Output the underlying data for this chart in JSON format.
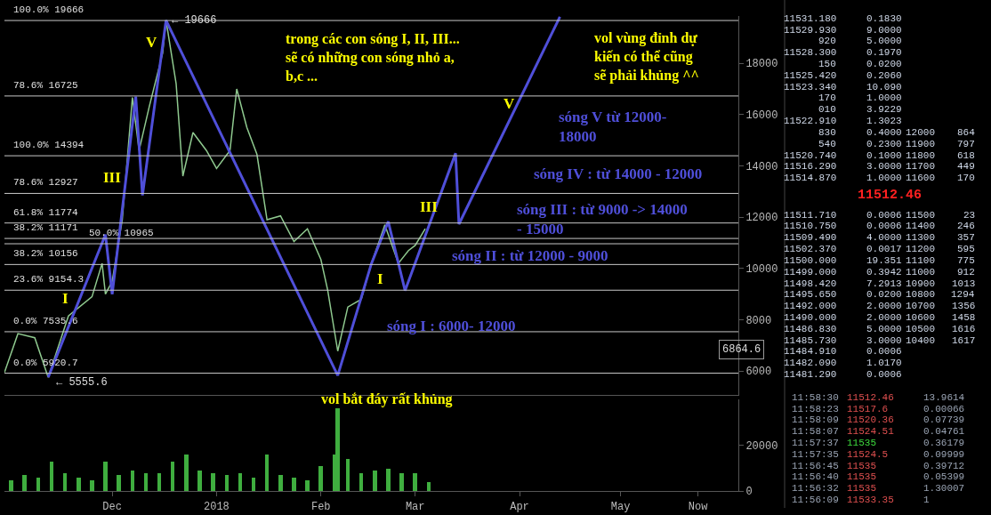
{
  "chart_data": [
    {
      "type": "line",
      "xlim": [
        "2017-10-30",
        "2018-06-05"
      ],
      "ylim": [
        5080,
        19850
      ],
      "yticks": [
        6000,
        8000,
        10000,
        12000,
        14000,
        16000,
        18000
      ],
      "tick_labels": "y",
      "series": [
        {
          "color": "#8fc98f",
          "x": [
            "2017-10-30",
            "2017-11-03",
            "2017-11-08",
            "2017-11-12",
            "2017-11-18",
            "2017-11-25",
            "2017-11-28",
            "2017-11-29",
            "2017-12-01",
            "2017-12-04",
            "2017-12-07",
            "2017-12-09",
            "2017-12-12",
            "2017-12-16",
            "2017-12-17",
            "2017-12-20",
            "2017-12-22",
            "2017-12-25",
            "2017-12-29",
            "2018-01-01",
            "2018-01-05",
            "2018-01-07",
            "2018-01-10",
            "2018-01-13",
            "2018-01-16",
            "2018-01-20",
            "2018-01-24",
            "2018-01-28",
            "2018-02-01",
            "2018-02-03",
            "2018-02-06",
            "2018-02-09",
            "2018-02-13",
            "2018-02-16",
            "2018-02-20",
            "2018-02-24",
            "2018-02-27",
            "2018-03-01",
            "2018-03-04"
          ],
          "values": [
            5950,
            7460,
            7300,
            5760,
            8150,
            8900,
            10200,
            9000,
            9500,
            11900,
            16670,
            14600,
            16300,
            18400,
            19670,
            17200,
            13600,
            15300,
            14600,
            13900,
            14600,
            17000,
            15500,
            14450,
            11900,
            12050,
            11050,
            11550,
            10350,
            9170,
            6780,
            8500,
            8800,
            10200,
            11700,
            10200,
            10700,
            10900,
            11550
          ]
        },
        {
          "color": "#4f4fd9",
          "x": [
            "2017-11-12",
            "2017-11-29",
            "2017-12-01",
            "2017-12-08",
            "2017-12-10",
            "2017-12-17",
            "2018-02-06",
            "2018-02-16",
            "2018-02-21",
            "2018-02-26",
            "2018-03-13",
            "2018-03-14",
            "2018-04-13"
          ],
          "values": [
            5760,
            11320,
            9000,
            16700,
            12850,
            19670,
            5830,
            10190,
            11830,
            9140,
            14490,
            11730,
            19810
          ]
        }
      ],
      "ref_lines": [
        {
          "axis": "y",
          "value": 19666,
          "label": "100.0% 19666",
          "color": "#c8c8c8"
        },
        {
          "axis": "y",
          "value": 16725,
          "label": "78.6% 16725",
          "color": "#c8c8c8"
        },
        {
          "axis": "y",
          "value": 14394,
          "label": "100.0% 14394",
          "color": "#c8c8c8"
        },
        {
          "axis": "y",
          "value": 12927,
          "label": "78.6% 12927",
          "color": "#c8c8c8"
        },
        {
          "axis": "y",
          "value": 11774,
          "label": "61.8% 11774",
          "color": "#c8c8c8"
        },
        {
          "axis": "y",
          "value": 11171,
          "label": "38.2% 11171",
          "color": "#c8c8c8"
        },
        {
          "axis": "y",
          "value": 10965,
          "label": "50.0% 10965",
          "color": "#c8c8c8"
        },
        {
          "axis": "y",
          "value": 10156,
          "label": "38.2% 10156",
          "color": "#c8c8c8"
        },
        {
          "axis": "y",
          "value": 9154.3,
          "label": "23.6% 9154.3",
          "color": "#c8c8c8"
        },
        {
          "axis": "y",
          "value": 7535.6,
          "label": "0.0% 7535.6",
          "color": "#c8c8c8"
        },
        {
          "axis": "y",
          "value": 5920.7,
          "label": "0.0% 5920.7",
          "color": "#c8c8c8"
        }
      ],
      "annotations": [
        "V",
        "III",
        "I",
        "I",
        "III",
        "V",
        "trong các con sóng I, II, III...\nsẽ có những con sóng nhỏ a,\nb,c ...",
        "vol vùng đỉnh dự\nkiến có thể cũng\nsẽ phải khủng ^^",
        "sóng V từ 12000-\n18000",
        "sóng IV : từ 14000 - 12000",
        "sóng III : từ 9000 -> 14000\n- 15000",
        "sóng II : từ 12000 - 9000",
        "sóng I : 6000- 12000",
        {
          "text": "← 19666",
          "x": "2017-12-18",
          "y": 19666
        },
        "← 5555.6",
        "6864.6",
        "vol bắt đáy rất khủng"
      ]
    },
    {
      "type": "bar",
      "xlim": [
        "2017-10-30",
        "2018-06-05"
      ],
      "ylim": [
        0,
        40000
      ],
      "yticks": [
        0,
        20000
      ],
      "xticks": [
        {
          "value": "2017-12-01",
          "label": "Dec"
        },
        {
          "value": "2018-01-01",
          "label": "2018"
        },
        {
          "value": "2018-02-01",
          "label": "Feb"
        },
        {
          "value": "2018-03-01",
          "label": "Mar"
        },
        {
          "value": "2018-04-01",
          "label": "Apr"
        },
        {
          "value": "2018-05-01",
          "label": "May"
        },
        {
          "value": "2018-05-24",
          "label": "Now"
        }
      ],
      "x": [
        "2017-11-01",
        "2017-11-05",
        "2017-11-09",
        "2017-11-13",
        "2017-11-17",
        "2017-11-21",
        "2017-11-25",
        "2017-11-29",
        "2017-12-03",
        "2017-12-07",
        "2017-12-11",
        "2017-12-15",
        "2017-12-19",
        "2017-12-23",
        "2017-12-27",
        "2017-12-31",
        "2018-01-04",
        "2018-01-08",
        "2018-01-12",
        "2018-01-16",
        "2018-01-20",
        "2018-01-24",
        "2018-01-28",
        "2018-02-01",
        "2018-02-05",
        "2018-02-06",
        "2018-02-09",
        "2018-02-13",
        "2018-02-17",
        "2018-02-21",
        "2018-02-25",
        "2018-03-01",
        "2018-03-05"
      ],
      "series": [
        {
          "color": "#3fae3f",
          "values": [
            5000,
            7000,
            6000,
            13000,
            8000,
            6000,
            5000,
            13000,
            7000,
            9000,
            8000,
            8000,
            13000,
            16000,
            9000,
            8000,
            7000,
            8000,
            6000,
            16000,
            7000,
            6000,
            5000,
            11000,
            16000,
            36000,
            14000,
            8000,
            9000,
            10000,
            8000,
            8000,
            4000
          ]
        }
      ]
    },
    {
      "type": "other",
      "annotations": [
        "11531.180 0.1830",
        "11529.930 9.0000",
        "920 5.0000",
        "11528.300 0.1970",
        "150 0.0200",
        "11525.420 0.2060",
        "11523.340 10.090",
        "170 1.0000",
        "010 3.9229",
        "11522.910 1.3023",
        "830 0.4000 12000 864",
        "540 0.2300 11900 797",
        "11520.740 0.1000 11800 618",
        "11516.290 3.0000 11700 449",
        "11514.870 1.0000 11600 170",
        "11512.46",
        "11511.710 0.0006 11500 23",
        "11510.750 0.0006 11400 246",
        "11509.490 4.0000 11300 357",
        "11502.370 0.0017 11200 595",
        "11500.000 19.351 11100 775",
        "11499.000 0.3942 11000 912",
        "11498.420 7.2913 10900 1013",
        "11495.650 0.0200 10800 1294",
        "11492.000 2.0000 10700 1356",
        "11490.000 2.0000 10600 1458",
        "11486.830 5.0000 10500 1616",
        "11485.730 3.0000 10400 1617",
        "11484.910 0.0006",
        "11482.090 1.0170",
        "11481.290 0.0006",
        "11:58:30 11512.46 13.9614",
        "11:58:23 11517.6 0.00066",
        "11:58:09 11520.36 0.07739",
        "11:58:07 11524.51 0.04761",
        "11:57:37 11535 0.36179",
        "11:57:35 11524.5 0.09999",
        "11:56:45 11535 0.39712",
        "11:56:40 11535 0.05399",
        "11:56:32 11535 1.30007",
        "11:56:09 11533.35 1"
      ]
    }
  ]
}
